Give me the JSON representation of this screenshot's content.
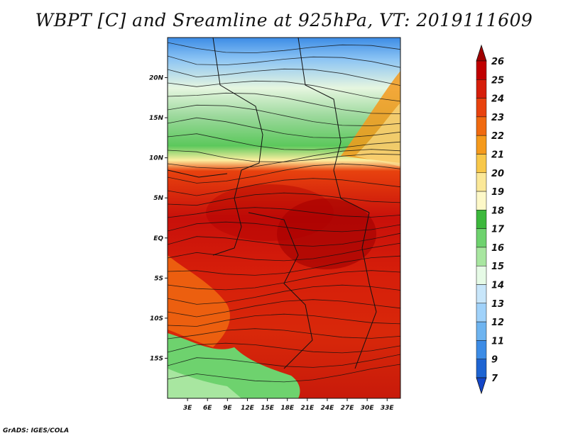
{
  "title": "WBPT [C] and Sreamline at 925hPa, VT: 2019111609",
  "credit": "GrADS: IGES/COLA",
  "map": {
    "lon_range": [
      0,
      35
    ],
    "lat_range": [
      -20,
      25
    ],
    "lon_ticks": [
      "3E",
      "6E",
      "9E",
      "12E",
      "15E",
      "18E",
      "21E",
      "24E",
      "27E",
      "30E",
      "33E"
    ],
    "lon_tick_values": [
      3,
      6,
      9,
      12,
      15,
      18,
      21,
      24,
      27,
      30,
      33
    ],
    "lat_ticks": [
      "20N",
      "15N",
      "10N",
      "5N",
      "EQ",
      "5S",
      "10S",
      "15S"
    ],
    "lat_tick_values": [
      20,
      15,
      10,
      5,
      0,
      -5,
      -10,
      -15
    ]
  },
  "colorbar": {
    "levels": [
      "26",
      "25",
      "24",
      "23",
      "22",
      "21",
      "20",
      "19",
      "18",
      "17",
      "16",
      "15",
      "14",
      "13",
      "12",
      "11",
      "9",
      "7"
    ],
    "colors": [
      "#a00000",
      "#c00000",
      "#d61e0a",
      "#e8420e",
      "#f06a10",
      "#f59a1c",
      "#f8c84a",
      "#fbe898",
      "#fdf8c8",
      "#3cb83c",
      "#6ed26e",
      "#a8e6a0",
      "#e6fae6",
      "#c8e6fa",
      "#a0d2fa",
      "#6eb4f0",
      "#3c8ce6",
      "#1e64d2",
      "#1446c8"
    ]
  }
}
